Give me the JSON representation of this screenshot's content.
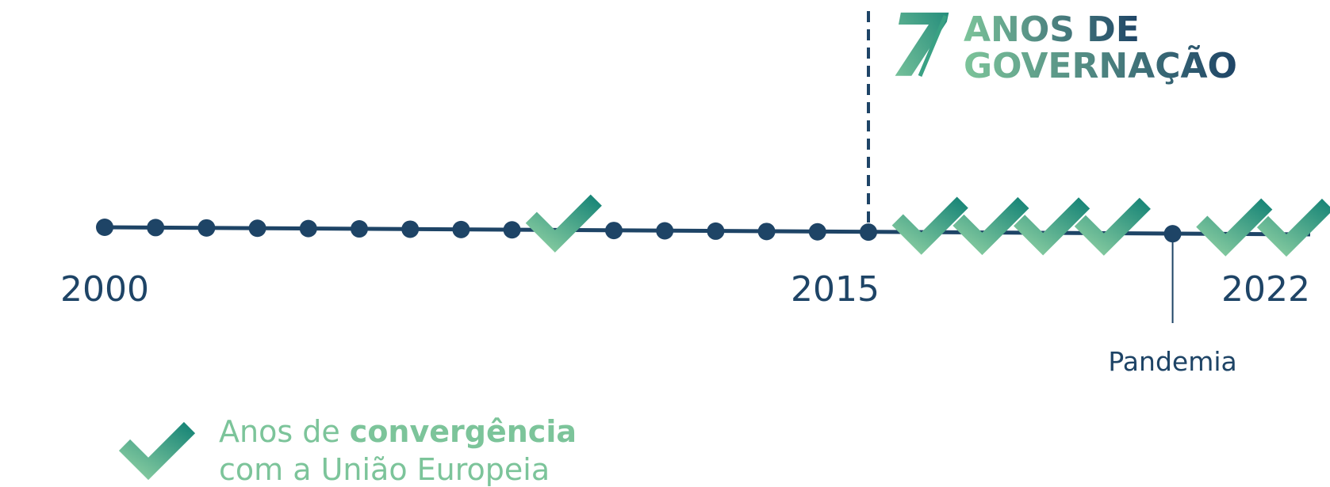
{
  "header": {
    "number": "7",
    "line1": "ANOS DE",
    "line2": "GOVERNAÇÃO"
  },
  "axis": {
    "labels": [
      2000,
      2015,
      2022
    ]
  },
  "convergence_years": [
    2009,
    2016,
    2017,
    2018,
    2019,
    2021,
    2022
  ],
  "event": {
    "year": 2020,
    "label": "Pandemia"
  },
  "legend": {
    "text": "Anos de ",
    "bold": "convergência",
    "line2": "com a União Europeia"
  }
}
